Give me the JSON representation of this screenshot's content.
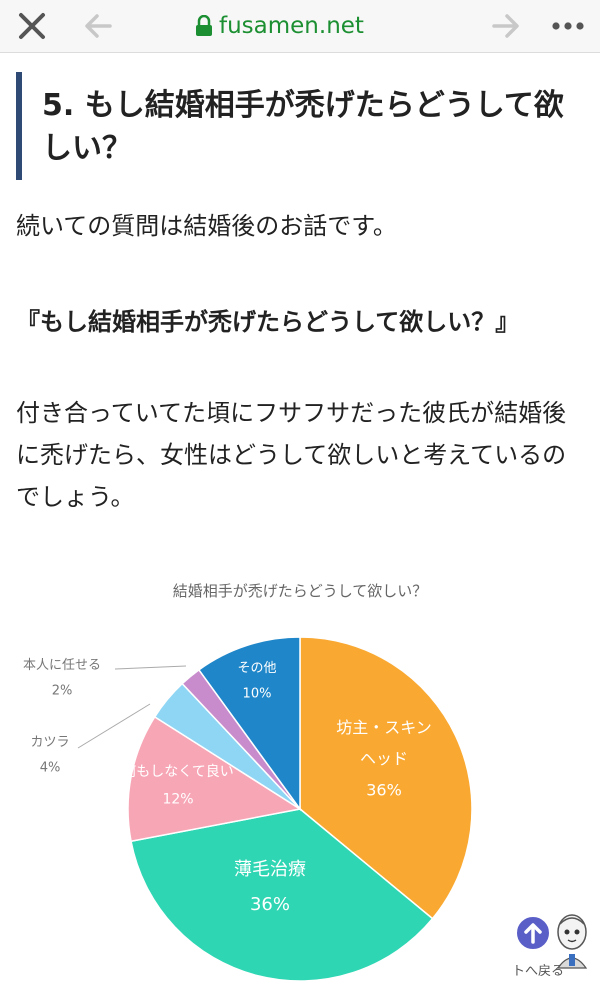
{
  "browser": {
    "url": "fusamen.net",
    "icons": [
      "close-icon",
      "back-arrow-icon",
      "lock-icon",
      "forward-arrow-icon",
      "more-icon"
    ]
  },
  "article": {
    "heading": "5. もし結婚相手が禿げたらどうして欲しい？",
    "intro": "続いての質問は結婚後のお話です。",
    "question": "『もし結婚相手が禿げたらどうして欲しい？』",
    "body": "付き合っていてた頃にフサフサだった彼氏が結婚後に禿げたら、女性はどうして欲しいと考えているのでしょう。"
  },
  "chart_data": {
    "type": "pie",
    "title": "結婚相手が禿げたらどうして欲しい？",
    "slices": [
      {
        "label": "坊主・スキンヘッド",
        "label_lines": [
          "坊主・スキン",
          "ヘッド"
        ],
        "value": 36,
        "value_text": "36%",
        "color": "#f9a932"
      },
      {
        "label": "薄毛治療",
        "label_lines": [
          "薄毛治療"
        ],
        "value": 36,
        "value_text": "36%",
        "color": "#2fd6b3"
      },
      {
        "label": "何もしなくて良い",
        "label_lines": [
          "何もしなくて良い"
        ],
        "value": 12,
        "value_text": "12%",
        "color": "#f7a6b6"
      },
      {
        "label": "カツラ",
        "label_lines": [
          "カツラ"
        ],
        "value": 4,
        "value_text": "4%",
        "color": "#8fd6f5"
      },
      {
        "label": "本人に任せる",
        "label_lines": [
          "本人に任せる"
        ],
        "value": 2,
        "value_text": "2%",
        "color": "#c88ccc"
      },
      {
        "label": "その他",
        "label_lines": [
          "その他"
        ],
        "value": 10,
        "value_text": "10%",
        "color": "#1f86c9"
      }
    ],
    "legend": "none"
  },
  "widgets": {
    "scroll_top_icon": "arrow-up-circle-icon",
    "mascot_icon": "mascot-character-icon",
    "mascot_caption": "トへ戻る"
  }
}
